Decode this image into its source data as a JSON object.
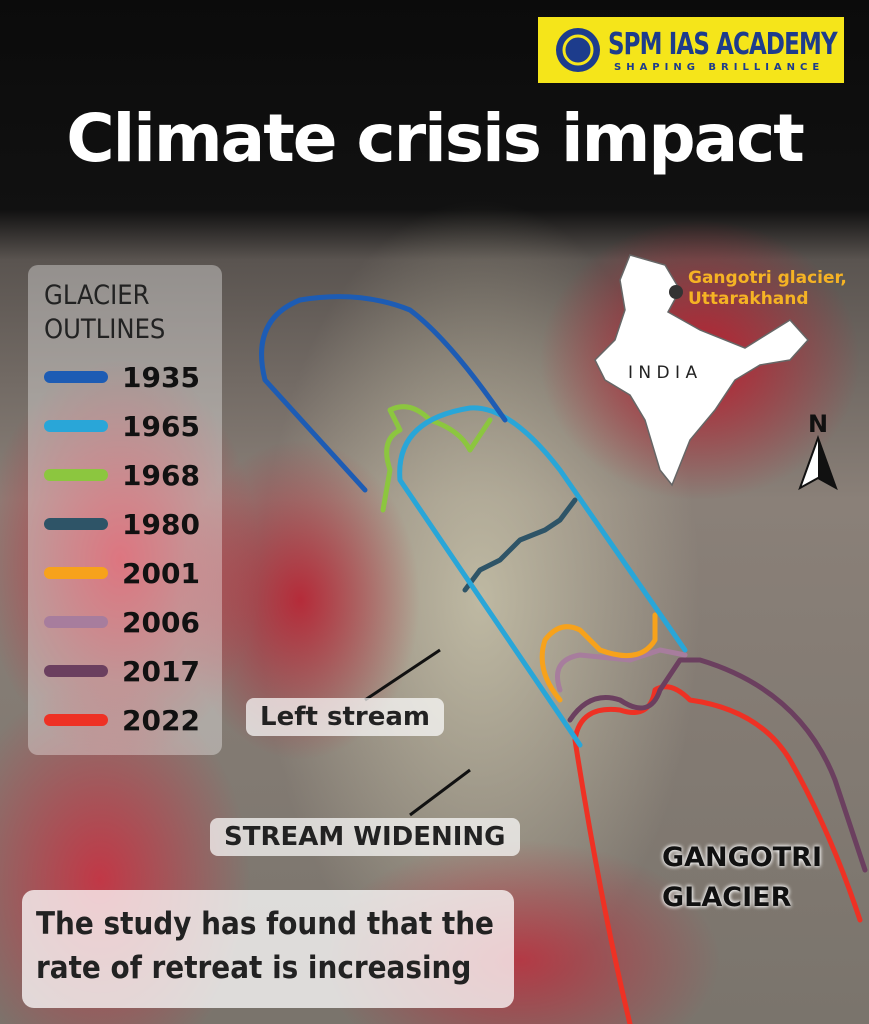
{
  "brand": {
    "name": "SPM IAS ACADEMY",
    "tagline": "SHAPING BRILLIANCE"
  },
  "title": "Climate crisis impact",
  "legend": {
    "title": "GLACIER OUTLINES",
    "items": [
      {
        "label": "1935",
        "color": "#1d5cb4"
      },
      {
        "label": "1965",
        "color": "#29a6d8"
      },
      {
        "label": "1968",
        "color": "#8cc63f"
      },
      {
        "label": "1980",
        "color": "#2e5467"
      },
      {
        "label": "2001",
        "color": "#f7a21b"
      },
      {
        "label": "2006",
        "color": "#a77d9d"
      },
      {
        "label": "2017",
        "color": "#6b3f5f"
      },
      {
        "label": "2022",
        "color": "#ee3124"
      }
    ]
  },
  "map": {
    "label_lines": [
      "Gangotri glacier,",
      "Uttarakhand"
    ],
    "country": "I N D I A",
    "north": "N"
  },
  "annotations": {
    "left_stream": "Left stream",
    "stream_widening": "STREAM WIDENING",
    "glacier_lines": [
      "GANGOTRI",
      "GLACIER"
    ]
  },
  "note": "The study has found that the rate of retreat is increasing"
}
